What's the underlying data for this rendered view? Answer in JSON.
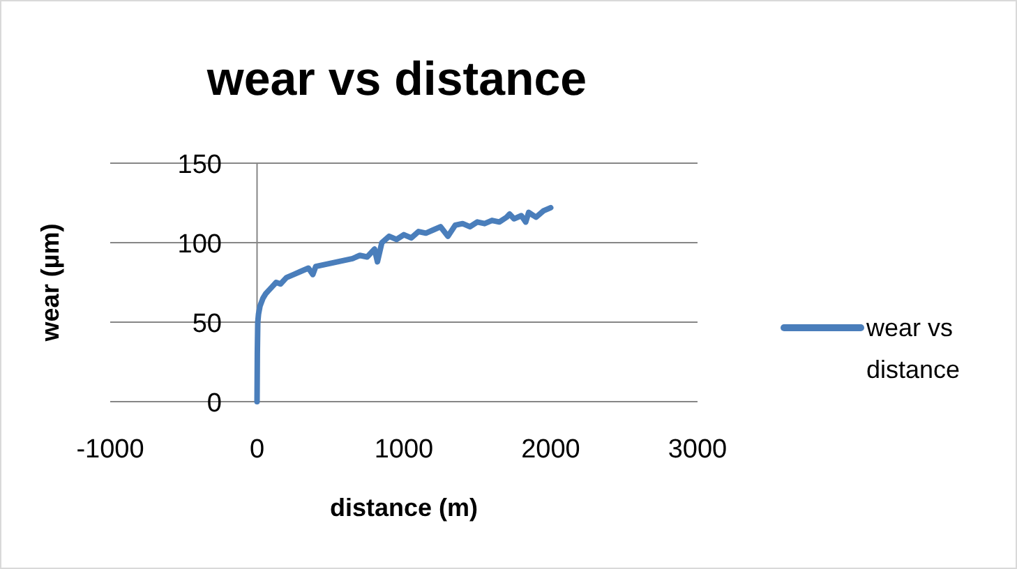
{
  "chart_data": {
    "type": "line",
    "title": "wear vs distance",
    "xlabel": "distance (m)",
    "ylabel": "wear (µm)",
    "xlim": [
      -1000,
      3000
    ],
    "xticks": [
      -1000,
      0,
      1000,
      2000,
      3000
    ],
    "ylim": [
      0,
      150
    ],
    "yticks": [
      0,
      50,
      100,
      150
    ],
    "grid": "y",
    "legend": "right",
    "marker": "none",
    "line_style": "solid",
    "series": [
      {
        "name": "wear vs distance",
        "color": "#4a7ebb",
        "x": [
          0,
          2,
          5,
          10,
          20,
          40,
          60,
          80,
          100,
          130,
          160,
          200,
          250,
          300,
          350,
          380,
          400,
          450,
          500,
          550,
          600,
          650,
          700,
          750,
          780,
          800,
          820,
          850,
          900,
          950,
          1000,
          1050,
          1100,
          1150,
          1200,
          1250,
          1300,
          1350,
          1400,
          1450,
          1500,
          1550,
          1600,
          1650,
          1700,
          1720,
          1750,
          1800,
          1830,
          1850,
          1900,
          1950,
          2000
        ],
        "values": [
          0,
          30,
          50,
          55,
          60,
          65,
          68,
          70,
          72,
          75,
          74,
          78,
          80,
          82,
          84,
          80,
          85,
          86,
          87,
          88,
          89,
          90,
          92,
          91,
          94,
          96,
          88,
          100,
          104,
          102,
          105,
          103,
          107,
          106,
          108,
          110,
          104,
          111,
          112,
          110,
          113,
          112,
          114,
          113,
          116,
          118,
          115,
          117,
          113,
          119,
          116,
          120,
          122
        ]
      }
    ]
  }
}
